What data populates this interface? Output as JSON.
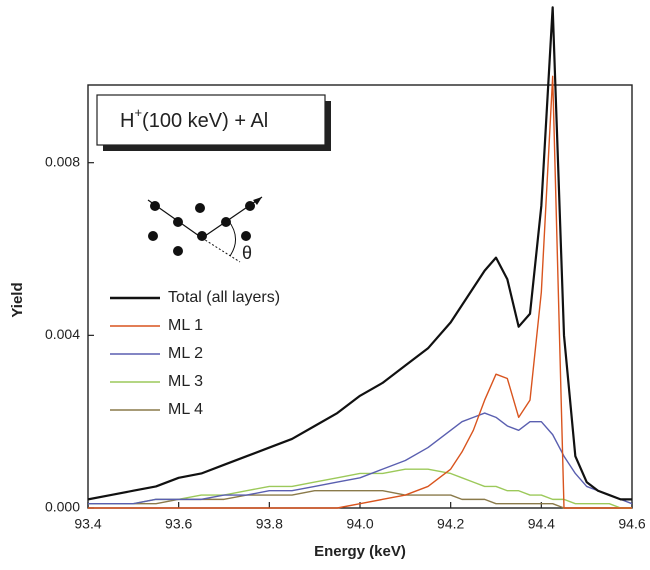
{
  "chart_data": {
    "type": "line",
    "title": {
      "base": "H",
      "sup": "+",
      "rest": "(100 keV) + Al"
    },
    "inset_label": "θ",
    "x_label": "Energy (keV)",
    "y_label": "Yield",
    "x": [
      93.4,
      93.45,
      93.5,
      93.55,
      93.6,
      93.65,
      93.7,
      93.75,
      93.8,
      93.85,
      93.9,
      93.95,
      94.0,
      94.05,
      94.1,
      94.15,
      94.2,
      94.225,
      94.25,
      94.275,
      94.3,
      94.325,
      94.35,
      94.375,
      94.4,
      94.425,
      94.45,
      94.475,
      94.5,
      94.525,
      94.55,
      94.575,
      94.6
    ],
    "series": [
      {
        "name": "Total (all layers)",
        "color": "#111111",
        "values": [
          0.0002,
          0.0003,
          0.0004,
          0.0005,
          0.0007,
          0.0008,
          0.001,
          0.0012,
          0.0014,
          0.0016,
          0.0019,
          0.0022,
          0.0026,
          0.0029,
          0.0033,
          0.0037,
          0.0043,
          0.0047,
          0.0051,
          0.0055,
          0.0058,
          0.0053,
          0.0042,
          0.0045,
          0.007,
          0.0116,
          0.004,
          0.0012,
          0.0006,
          0.0004,
          0.0003,
          0.0002,
          0.0002
        ]
      },
      {
        "name": "ML 1",
        "color": "#d9541e",
        "values": [
          0,
          0,
          0,
          0,
          0,
          0,
          0,
          0,
          0,
          0,
          0,
          0,
          0.0001,
          0.0002,
          0.0003,
          0.0005,
          0.0009,
          0.0013,
          0.0018,
          0.0025,
          0.0031,
          0.003,
          0.0021,
          0.0025,
          0.005,
          0.01,
          0,
          0,
          0,
          0,
          0,
          0,
          0
        ]
      },
      {
        "name": "ML 2",
        "color": "#5a5fb0",
        "values": [
          0.0001,
          0.0001,
          0.0001,
          0.0002,
          0.0002,
          0.0002,
          0.0003,
          0.0003,
          0.0004,
          0.0004,
          0.0005,
          0.0006,
          0.0007,
          0.0009,
          0.0011,
          0.0014,
          0.0018,
          0.002,
          0.0021,
          0.0022,
          0.0021,
          0.0019,
          0.0018,
          0.002,
          0.002,
          0.0017,
          0.0012,
          0.0008,
          0.0005,
          0.0004,
          0.0003,
          0.0002,
          0.0001
        ]
      },
      {
        "name": "ML 3",
        "color": "#9cc95a",
        "values": [
          0.0001,
          0.0001,
          0.0001,
          0.0002,
          0.0002,
          0.0003,
          0.0003,
          0.0004,
          0.0005,
          0.0005,
          0.0006,
          0.0007,
          0.0008,
          0.0008,
          0.0009,
          0.0009,
          0.0008,
          0.0007,
          0.0006,
          0.0005,
          0.0005,
          0.0004,
          0.0004,
          0.0003,
          0.0003,
          0.0002,
          0.0002,
          0.0001,
          0.0001,
          0.0001,
          0.0001,
          0,
          0
        ]
      },
      {
        "name": "ML 4",
        "color": "#8a7a4a",
        "values": [
          0.0001,
          0.0001,
          0.0001,
          0.0001,
          0.0002,
          0.0002,
          0.0002,
          0.0003,
          0.0003,
          0.0003,
          0.0004,
          0.0004,
          0.0004,
          0.0004,
          0.0003,
          0.0003,
          0.0003,
          0.0002,
          0.0002,
          0.0002,
          0.0001,
          0.0001,
          0.0001,
          0.0001,
          0.0001,
          0.0001,
          0,
          0,
          0,
          0,
          0,
          0,
          0
        ]
      }
    ],
    "xlim": [
      93.4,
      94.6
    ],
    "xticks": [
      93.4,
      93.6,
      93.8,
      {
        "value": 94,
        "label": "94.0"
      },
      94.2,
      94.4,
      94.6
    ],
    "ylim": [
      0,
      0.0098
    ],
    "yticks": [
      {
        "value": 0,
        "label": "0.000"
      },
      {
        "value": 0.004,
        "label": "0.004"
      },
      {
        "value": 0.008,
        "label": "0.008"
      }
    ]
  }
}
